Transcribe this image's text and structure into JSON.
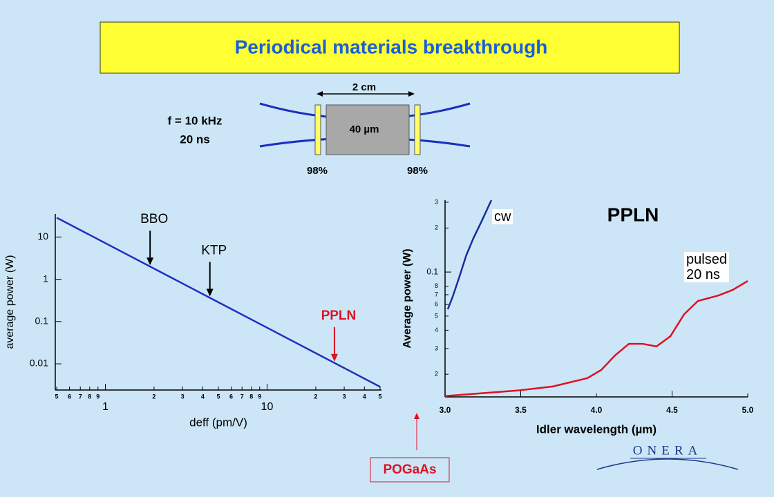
{
  "title": "Periodical materials breakthrough",
  "diagram": {
    "length": "2 cm",
    "waist": "40 µm",
    "reflectivity_left": "98%",
    "reflectivity_right": "98%",
    "repetition": "f = 10 kHz",
    "pulse": "20 ns"
  },
  "chart_data": [
    {
      "type": "line",
      "xlabel": "deff (pm/V)",
      "ylabel": "average power (W)",
      "xscale": "log",
      "yscale": "log",
      "xlim": [
        0.49,
        51
      ],
      "ylim": [
        0.0024,
        35
      ],
      "xticks": [
        {
          "value": 0.5,
          "label": "5"
        },
        {
          "value": 0.6,
          "label": "6"
        },
        {
          "value": 0.7,
          "label": "7"
        },
        {
          "value": 0.8,
          "label": "8"
        },
        {
          "value": 0.9,
          "label": "9"
        },
        1,
        {
          "value": 2,
          "label": "2"
        },
        {
          "value": 3,
          "label": "3"
        },
        {
          "value": 4,
          "label": "4"
        },
        {
          "value": 5,
          "label": "5"
        },
        {
          "value": 6,
          "label": "6"
        },
        {
          "value": 7,
          "label": "7"
        },
        {
          "value": 8,
          "label": "8"
        },
        {
          "value": 9,
          "label": "9"
        },
        10,
        {
          "value": 20,
          "label": "2"
        },
        {
          "value": 30,
          "label": "3"
        },
        {
          "value": 40,
          "label": "4"
        },
        {
          "value": 50,
          "label": "5"
        }
      ],
      "yticks": [
        0.01,
        0.1,
        1,
        10
      ],
      "x": [
        0.5,
        5,
        50
      ],
      "values": [
        28.6,
        0.286,
        0.00286
      ],
      "color": "#1c2fc0",
      "annotations": [
        {
          "text": "BBO",
          "x": 1.89,
          "color": "#000000"
        },
        {
          "text": "KTP",
          "x": 4.43,
          "color": "#000000"
        },
        {
          "text": "PPLN",
          "x": 26.1,
          "color": "#e01020"
        }
      ]
    },
    {
      "type": "line",
      "title": "PPLN",
      "xlabel": "Idler wavelength (µm)",
      "ylabel": "Average power (W)",
      "yscale": "log",
      "xlim": [
        3.0,
        5.0
      ],
      "ylim": [
        0.014,
        0.31
      ],
      "xticks": [
        {
          "value": 3.0,
          "label": "3.0"
        },
        3.5,
        {
          "value": 4.0,
          "label": "4.0"
        },
        4.5,
        {
          "value": 5.0,
          "label": "5.0"
        }
      ],
      "yticks": [
        {
          "value": 0.02,
          "label": "2"
        },
        {
          "value": 0.03,
          "label": "3"
        },
        {
          "value": 0.04,
          "label": "4"
        },
        {
          "value": 0.05,
          "label": "5"
        },
        {
          "value": 0.06,
          "label": "6"
        },
        {
          "value": 0.07,
          "label": "7"
        },
        {
          "value": 0.08,
          "label": "8"
        },
        0.1,
        {
          "value": 0.2,
          "label": "2"
        },
        {
          "value": 0.3,
          "label": "3"
        }
      ],
      "series": [
        {
          "name": "cw",
          "color": "#1a2a9a",
          "x": [
            3.018,
            3.05,
            3.096,
            3.14,
            3.187,
            3.242,
            3.306
          ],
          "values": [
            0.0556,
            0.0676,
            0.0937,
            0.13,
            0.17,
            0.223,
            0.31
          ]
        },
        {
          "name": "pulsed\n20 ns",
          "color": "#e01020",
          "x": [
            3.0,
            3.484,
            3.712,
            3.94,
            4.032,
            4.123,
            4.215,
            4.306,
            4.397,
            4.489,
            4.58,
            4.671,
            4.808,
            4.9,
            5.0
          ],
          "values": [
            0.0142,
            0.0155,
            0.0165,
            0.0188,
            0.0214,
            0.0269,
            0.0323,
            0.0323,
            0.031,
            0.0364,
            0.0515,
            0.0634,
            0.0692,
            0.0754,
            0.0869
          ]
        }
      ]
    }
  ],
  "callout": "POGaAs",
  "logo": "ONERA"
}
